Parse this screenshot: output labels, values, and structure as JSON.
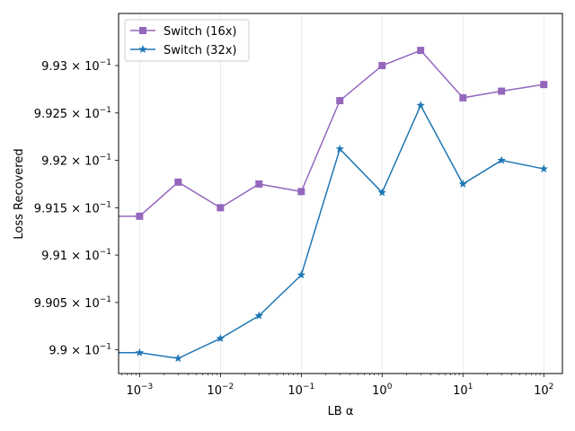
{
  "chart_data": {
    "type": "line",
    "title": "",
    "xlabel": "LB α",
    "ylabel": "Loss Recovered",
    "x_scale": "log",
    "x_range": [
      0.00055,
      170
    ],
    "y_range": [
      0.98975,
      0.99355
    ],
    "x": [
      0.0005,
      0.001,
      0.003,
      0.01,
      0.03,
      0.1,
      0.3,
      1,
      3,
      10,
      30,
      100
    ],
    "x_ticks": [
      {
        "value": 0.001,
        "base": "10",
        "exp": "−3"
      },
      {
        "value": 0.01,
        "base": "10",
        "exp": "−2"
      },
      {
        "value": 0.1,
        "base": "10",
        "exp": "−1"
      },
      {
        "value": 1,
        "base": "10",
        "exp": "0"
      },
      {
        "value": 10,
        "base": "10",
        "exp": "1"
      },
      {
        "value": 100,
        "base": "10",
        "exp": "2"
      }
    ],
    "y_ticks": [
      {
        "value": 0.99,
        "mant": "9.9 × 10",
        "exp": "−1"
      },
      {
        "value": 0.9905,
        "mant": "9.905 × 10",
        "exp": "−1"
      },
      {
        "value": 0.991,
        "mant": "9.91 × 10",
        "exp": "−1"
      },
      {
        "value": 0.9915,
        "mant": "9.915 × 10",
        "exp": "−1"
      },
      {
        "value": 0.992,
        "mant": "9.92 × 10",
        "exp": "−1"
      },
      {
        "value": 0.9925,
        "mant": "9.925 × 10",
        "exp": "−1"
      },
      {
        "value": 0.993,
        "mant": "9.93 × 10",
        "exp": "−1"
      }
    ],
    "grid": "x-major",
    "legend_position": "top-left",
    "series": [
      {
        "name": "Switch (16x)",
        "marker": "square",
        "color": "#9467bd",
        "values": [
          0.99141,
          0.99141,
          0.99177,
          0.9915,
          0.99175,
          0.99167,
          0.99263,
          0.993,
          0.99316,
          0.99266,
          0.99273,
          0.9928
        ]
      },
      {
        "name": "Switch (32x)",
        "marker": "star",
        "color": "#1f77b4",
        "values": [
          0.98997,
          0.98997,
          0.98991,
          0.99012,
          0.99036,
          0.99079,
          0.99212,
          0.99166,
          0.99258,
          0.99175,
          0.992,
          0.99191
        ]
      }
    ]
  }
}
